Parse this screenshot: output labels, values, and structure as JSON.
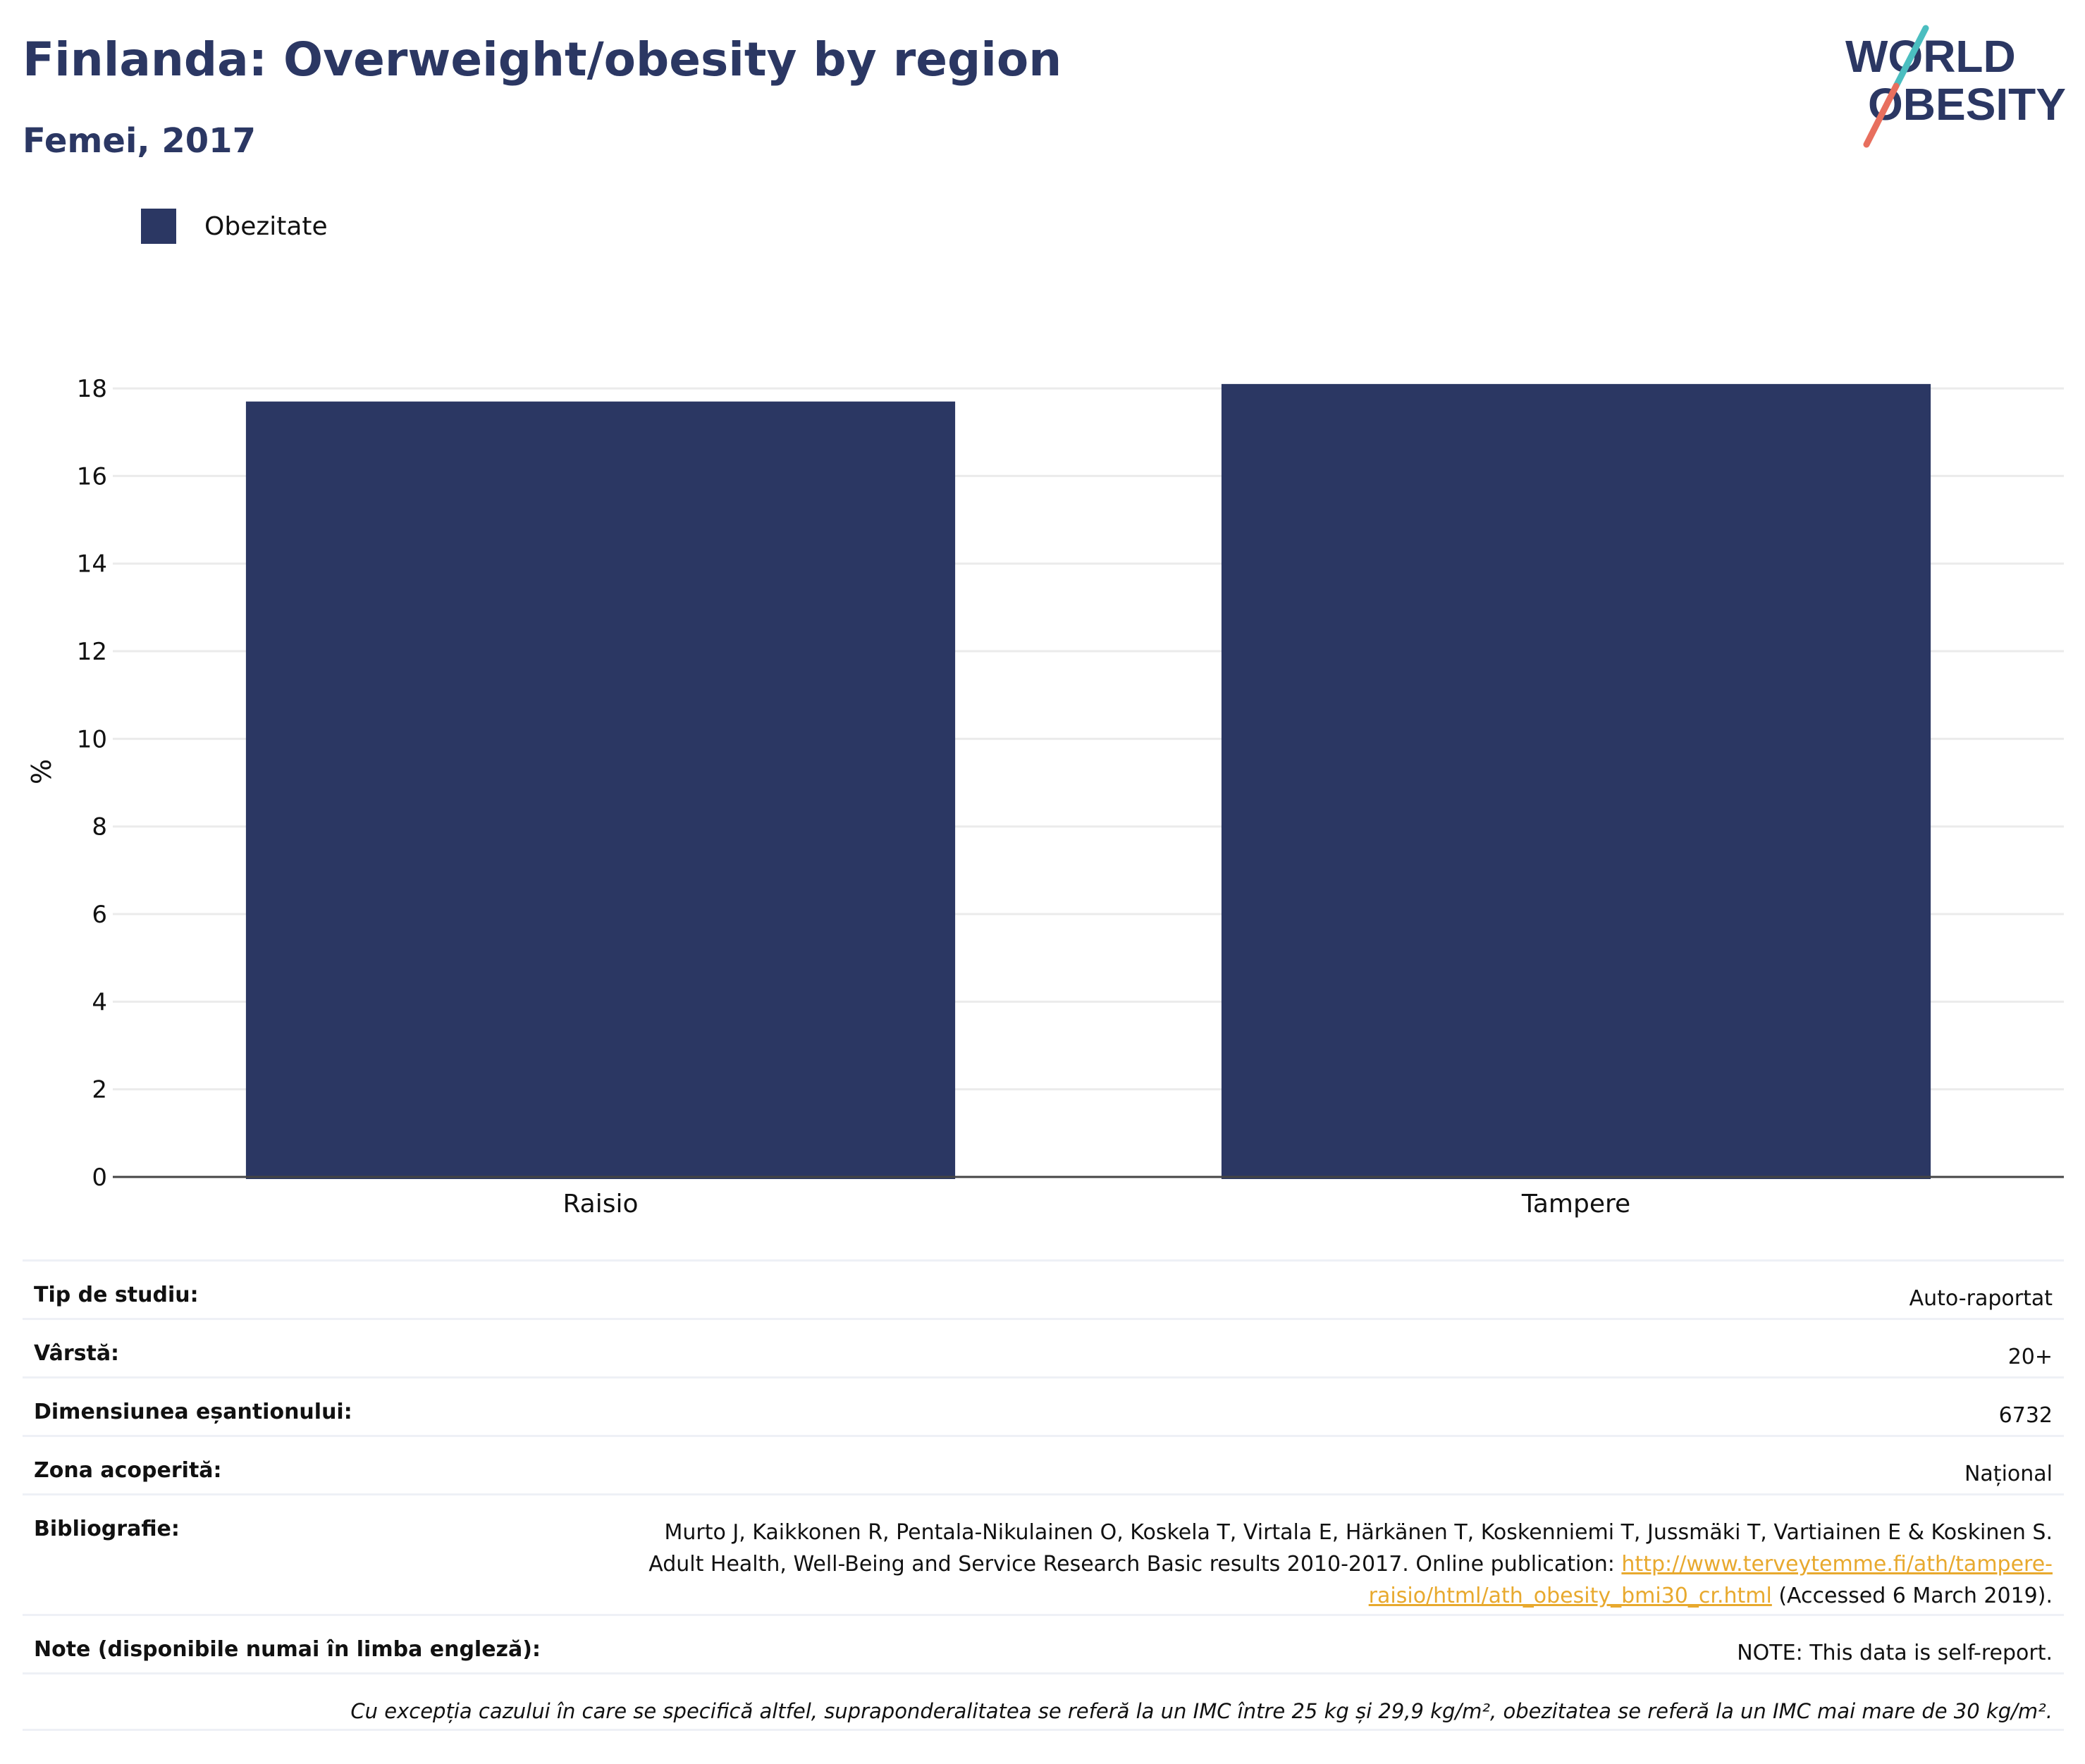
{
  "header": {
    "title": "Finlanda: Overweight/obesity by region",
    "subtitle": "Femei, 2017"
  },
  "logo": {
    "line1": "WORLD",
    "line2": "OBESITY"
  },
  "legend": {
    "label": "Obezitate",
    "color": "#2b3763"
  },
  "chart_data": {
    "type": "bar",
    "categories": [
      "Raisio",
      "Tampere"
    ],
    "series": [
      {
        "name": "Obezitate",
        "values": [
          17.7,
          18.1
        ]
      }
    ],
    "ylabel": "%",
    "ylim": [
      0,
      18.5
    ],
    "yticks": [
      0,
      2,
      4,
      6,
      8,
      10,
      12,
      14,
      16,
      18
    ],
    "grid": true,
    "legend": "top-left",
    "bar_color": "#2b3763"
  },
  "info": {
    "study_type": {
      "label": "Tip de studiu:",
      "value": "Auto-raportat"
    },
    "age": {
      "label": "Vârstă:",
      "value": "20+"
    },
    "sample_size": {
      "label": "Dimensiunea eșantionului:",
      "value": "6732"
    },
    "area": {
      "label": "Zona acoperită:",
      "value": "Național"
    },
    "references": {
      "label": "Bibliografie:",
      "line1": "Murto J, Kaikkonen R, Pentala-Nikulainen O, Koskela T, Virtala E, Härkänen T, Koskenniemi T, Jussmäki T, Vartiainen E & Koskinen S.",
      "line2_text": "Adult Health, Well-Being and Service Research Basic results 2010-2017. Online publication: ",
      "link_part1": "http://www.terveytemme.fi/ath/tampere-",
      "link_part2": "raisio/html/ath_obesity_bmi30_cr.html",
      "line3_tail": " (Accessed 6 March 2019)."
    },
    "notes": {
      "label": "Note (disponibile numai în limba engleză):",
      "value": "NOTE: This data is self-report."
    },
    "footnote": "Cu excepția cazului în care se specifică altfel, supraponderalitatea se referă la un IMC între 25 kg și 29,9 kg/m², obezitatea se referă la un IMC mai mare de 30 kg/m²."
  }
}
